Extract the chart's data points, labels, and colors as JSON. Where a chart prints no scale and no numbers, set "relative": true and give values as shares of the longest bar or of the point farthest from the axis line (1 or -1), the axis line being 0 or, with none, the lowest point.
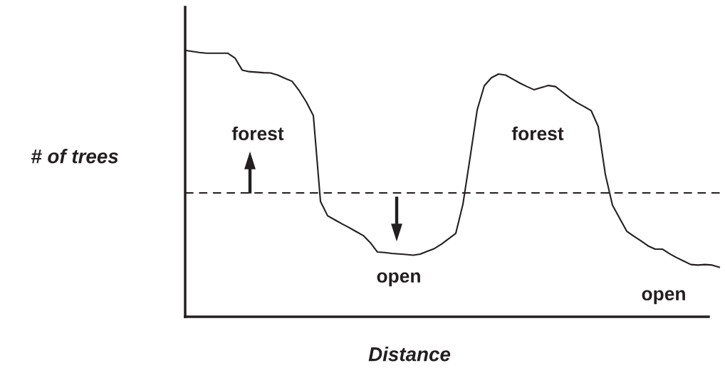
{
  "chart_data": {
    "type": "line",
    "relative": true,
    "xlabel": "Distance",
    "ylabel": "# of trees",
    "categories": [
      null,
      null,
      null,
      null,
      null,
      null,
      null,
      null,
      null,
      null,
      null,
      null,
      null,
      null,
      null,
      null,
      null,
      null,
      null,
      null,
      null,
      null,
      null,
      null,
      null,
      null,
      null,
      null,
      null,
      null,
      null,
      null,
      null,
      null,
      null,
      null,
      null,
      null,
      null,
      null,
      null,
      null,
      null,
      null,
      null,
      null,
      null,
      null,
      null,
      null,
      null,
      null,
      null,
      null,
      null,
      null,
      null,
      null,
      null,
      null,
      null,
      null,
      null,
      null,
      null,
      null,
      null,
      null,
      null,
      null,
      null,
      null,
      null,
      null,
      null,
      null
    ],
    "series": [
      {
        "color": "#231f20",
        "values": [
          1.0,
          0.996,
          0.992,
          0.989,
          0.989,
          0.989,
          0.989,
          0.971,
          0.926,
          0.92,
          0.918,
          0.916,
          0.915,
          0.907,
          0.895,
          0.884,
          0.849,
          0.807,
          0.755,
          0.433,
          0.379,
          0.364,
          0.349,
          0.335,
          0.32,
          0.305,
          0.278,
          0.243,
          0.241,
          0.238,
          0.236,
          0.234,
          0.231,
          0.235,
          0.246,
          0.256,
          0.273,
          0.293,
          0.313,
          0.422,
          0.596,
          0.776,
          0.867,
          0.897,
          0.911,
          0.907,
          0.892,
          0.877,
          0.864,
          0.852,
          0.86,
          0.868,
          0.864,
          0.843,
          0.822,
          0.804,
          0.789,
          0.774,
          0.714,
          0.534,
          0.419,
          0.37,
          0.321,
          0.302,
          0.285,
          0.266,
          0.254,
          0.254,
          0.237,
          0.222,
          0.209,
          0.196,
          0.194,
          0.196,
          0.194,
          0.186
        ]
      }
    ],
    "ref_lines": [
      {
        "axis": "y",
        "value": 0.465,
        "color": "#231f20",
        "line_style": "dashed"
      }
    ],
    "annotations": [
      "forest",
      "forest",
      "open",
      "open"
    ],
    "marker": "none",
    "line_style": "solid"
  }
}
